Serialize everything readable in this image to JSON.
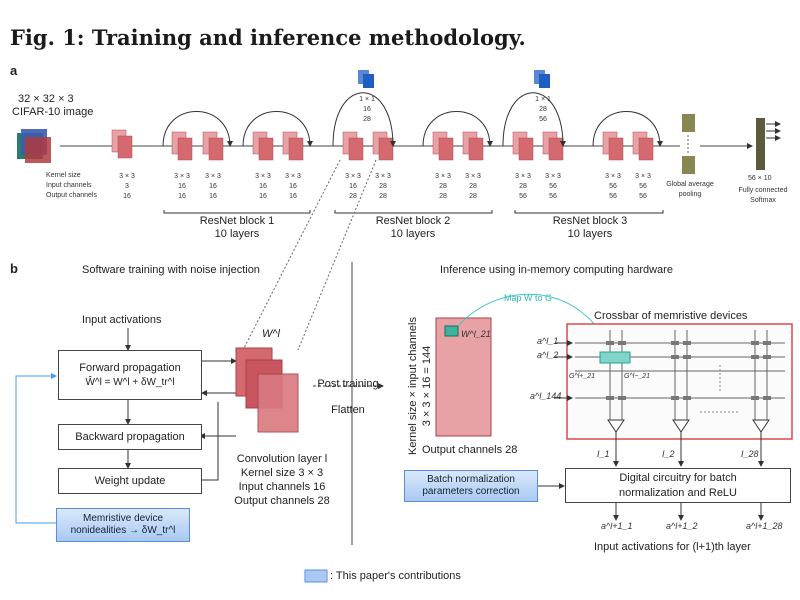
{
  "figure_title": "Fig. 1: Training and inference methodology.",
  "panel_a": {
    "label": "a",
    "input_image_label_1": "32 × 32 × 3",
    "input_image_label_2": "CIFAR-10 image",
    "row_labels": [
      "Kernel size",
      "Input channels",
      "Output channels"
    ],
    "first_conv": [
      "3 × 3",
      "3",
      "16"
    ],
    "columns": [
      [
        "3 × 3",
        "16",
        "16"
      ],
      [
        "3 × 3",
        "16",
        "16"
      ],
      [
        "3 × 3",
        "16",
        "16"
      ],
      [
        "3 × 3",
        "16",
        "16"
      ],
      [
        "3 × 3",
        "16",
        "28"
      ],
      [
        "3 × 3",
        "28",
        "28"
      ],
      [
        "3 × 3",
        "28",
        "28"
      ],
      [
        "3 × 3",
        "28",
        "28"
      ],
      [
        "3 × 3",
        "28",
        "56"
      ],
      [
        "3 × 3",
        "56",
        "56"
      ],
      [
        "3 × 3",
        "56",
        "56"
      ],
      [
        "3 × 3",
        "56",
        "56"
      ]
    ],
    "shortcut_1": [
      "1 × 1",
      "16",
      "28"
    ],
    "shortcut_2": [
      "1 × 1",
      "28",
      "56"
    ],
    "pooling_label_1": "Global average",
    "pooling_label_2": "pooling",
    "fc_dims": "56 × 10",
    "fc_label_1": "Fully connected",
    "fc_label_2": "Softmax",
    "blocks": [
      {
        "name": "ResNet block 1",
        "layers": "10 layers"
      },
      {
        "name": "ResNet block 2",
        "layers": "10 layers"
      },
      {
        "name": "ResNet block 3",
        "layers": "10 layers"
      }
    ]
  },
  "panel_b": {
    "label": "b",
    "left_title": "Software training with noise injection",
    "right_title": "Inference using in-memory computing hardware",
    "input_activations": "Input activations",
    "forward_title": "Forward propagation",
    "forward_formula": "Ŵ^l = W^l + δW_tr^l",
    "backward": "Backward propagation",
    "weight_update": "Weight update",
    "nonidealities_1": "Memristive device",
    "nonidealities_2": "nonidealities → δW_tr^l",
    "weight_label": "W^l",
    "conv_layer": [
      "Convolution layer l",
      "Kernel size 3 × 3",
      "Input channels 16",
      "Output channels 28"
    ],
    "post_training_1": "Post training",
    "post_training_2": "Flatten",
    "matrix_side_label": "Kernel size × input channels",
    "matrix_side_dims": "3 × 3 × 16 = 144",
    "matrix_cell": "W^l_21",
    "matrix_bottom": "Output channels 28",
    "map_label": "Map W to G",
    "crossbar_title": "Crossbar of memristive devices",
    "row_inputs": [
      "a^l_1",
      "a^l_2",
      "a^l_144"
    ],
    "conductances": [
      "G^l+_21",
      "G^l−_21"
    ],
    "currents": [
      "I_1",
      "I_2",
      "I_28"
    ],
    "bn_correction_1": "Batch normalization",
    "bn_correction_2": "parameters correction",
    "digital_1": "Digital circuitry for batch",
    "digital_2": "normalization and ReLU",
    "outputs": [
      "a^l+1_1",
      "a^l+1_2",
      "a^l+1_28"
    ],
    "output_caption": "Input activations for (l+1)th layer"
  },
  "legend": ": This paper's contributions",
  "colors": {
    "conv_red": "#c9565e",
    "conv_light": "#e8a2a6",
    "shortcut_blue": "#1f5fc4",
    "pool_olive": "#8a8652",
    "crossbar_border": "#d94b4b",
    "map_arrow": "#3ec8c0",
    "contribution_blue": "#a9c9f2"
  }
}
